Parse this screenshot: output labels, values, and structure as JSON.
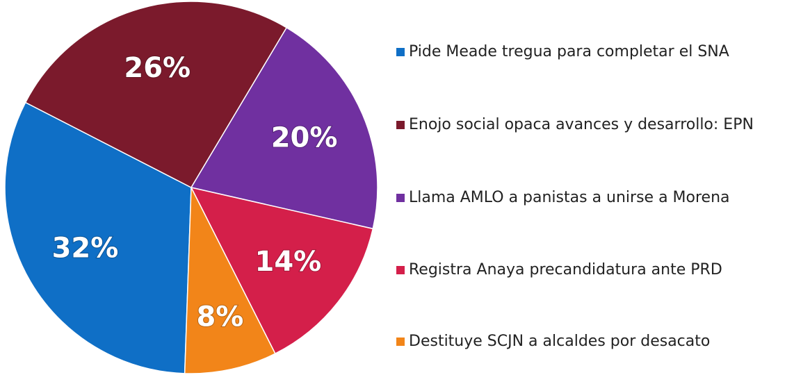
{
  "chart_data": {
    "type": "pie",
    "categories": [
      "Pide Meade tregua para completar el SNA",
      "Enojo social opaca avances y desarrollo: EPN",
      "Llama AMLO a panistas a unirse a Morena",
      "Registra Anaya precandidatura ante PRD",
      "Destituye SCJN a alcaldes por desacato"
    ],
    "values": [
      32,
      26,
      20,
      14,
      8
    ],
    "value_labels": [
      "32%",
      "26%",
      "20%",
      "14%",
      "8%"
    ],
    "colors": [
      "#0f6fc6",
      "#7b1a2c",
      "#7030a0",
      "#d41f4a",
      "#f28519"
    ],
    "legend": "right"
  }
}
